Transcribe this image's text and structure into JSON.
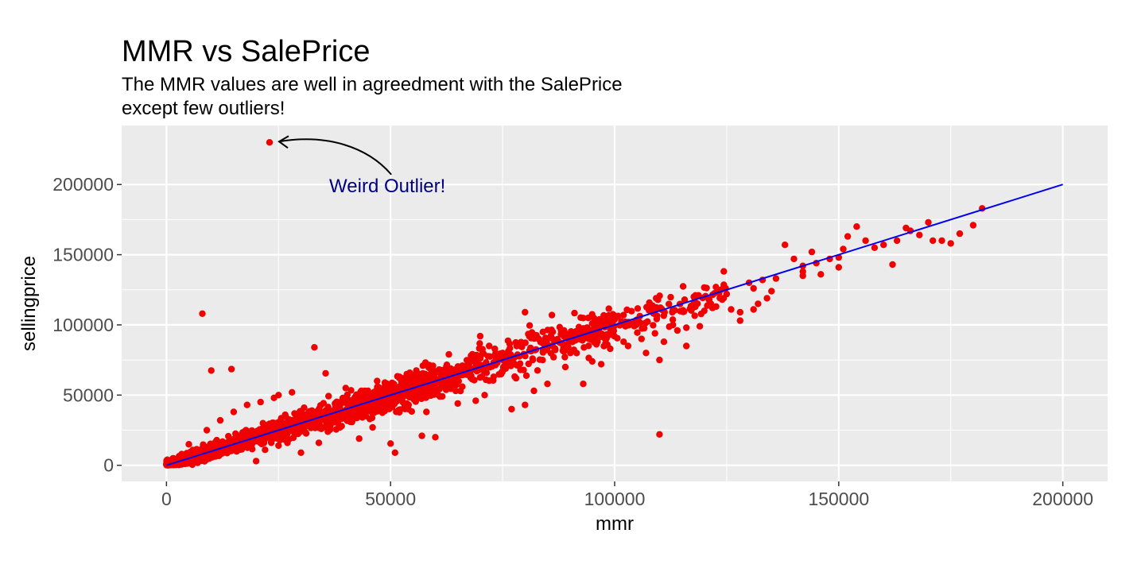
{
  "chart_data": {
    "type": "scatter",
    "title": "MMR vs SalePrice",
    "subtitle_lines": [
      "The MMR values are well in agreedment with the SalePrice",
      "except few outliers!"
    ],
    "xlabel": "mmr",
    "ylabel": "sellingprice",
    "xlim": [
      -10000,
      210000
    ],
    "ylim": [
      -11500,
      242000
    ],
    "x_ticks": [
      0,
      50000,
      100000,
      150000,
      200000
    ],
    "x_tick_labels": [
      "0",
      "50000",
      "100000",
      "150000",
      "200000"
    ],
    "y_ticks": [
      0,
      50000,
      100000,
      150000,
      200000
    ],
    "y_tick_labels": [
      "0",
      "50000",
      "100000",
      "150000",
      "200000"
    ],
    "grid": true,
    "point_color": "#f00000",
    "panel_color": "#ebebeb",
    "grid_color": "#ffffff",
    "reference_line": {
      "color": "#0000ee",
      "x": [
        0,
        200000
      ],
      "y": [
        0,
        200000
      ]
    },
    "annotation": {
      "text": "Weird Outlier!",
      "color": "#000080",
      "point": [
        23000,
        230000
      ],
      "text_position": [
        50000,
        198000
      ]
    },
    "points": [
      [
        23000,
        230000
      ],
      [
        8000,
        108000
      ],
      [
        110000,
        22000
      ],
      [
        10000,
        67500
      ],
      [
        14500,
        68500
      ],
      [
        33000,
        84000
      ],
      [
        35500,
        65500
      ],
      [
        77000,
        40000
      ],
      [
        23000,
        29500
      ],
      [
        24000,
        48000
      ],
      [
        26500,
        36000
      ],
      [
        30000,
        38500
      ],
      [
        57000,
        21000
      ],
      [
        51000,
        9000
      ],
      [
        50000,
        15500
      ],
      [
        58000,
        38000
      ],
      [
        60000,
        20000
      ],
      [
        65000,
        44000
      ],
      [
        69000,
        46000
      ],
      [
        71000,
        50000
      ],
      [
        78000,
        62000
      ],
      [
        80000,
        43000
      ],
      [
        82000,
        53000
      ],
      [
        85000,
        58000
      ],
      [
        89000,
        70000
      ],
      [
        93000,
        58000
      ],
      [
        95000,
        74000
      ],
      [
        97000,
        72000
      ],
      [
        99000,
        83000
      ],
      [
        103000,
        85000
      ],
      [
        106000,
        90000
      ],
      [
        109000,
        94000
      ],
      [
        111000,
        88000
      ],
      [
        113000,
        100000
      ],
      [
        116000,
        98000
      ],
      [
        116000,
        85000
      ],
      [
        118000,
        113000
      ],
      [
        120000,
        110000
      ],
      [
        121000,
        118000
      ],
      [
        123000,
        125000
      ],
      [
        125000,
        122000
      ],
      [
        126000,
        111000
      ],
      [
        128000,
        109000
      ],
      [
        128000,
        103000
      ],
      [
        130000,
        130000
      ],
      [
        131000,
        126000
      ],
      [
        133000,
        132000
      ],
      [
        134000,
        119000
      ],
      [
        135000,
        124000
      ],
      [
        136000,
        133000
      ],
      [
        132000,
        115000
      ],
      [
        131000,
        111000
      ],
      [
        138000,
        157000
      ],
      [
        140000,
        147000
      ],
      [
        142000,
        142000
      ],
      [
        142000,
        138000
      ],
      [
        142000,
        135000
      ],
      [
        144000,
        152000
      ],
      [
        145000,
        144000
      ],
      [
        146000,
        136000
      ],
      [
        148000,
        147000
      ],
      [
        150000,
        148000
      ],
      [
        150000,
        141000
      ],
      [
        151000,
        154000
      ],
      [
        152000,
        163000
      ],
      [
        154000,
        170000
      ],
      [
        156000,
        160000
      ],
      [
        158000,
        155000
      ],
      [
        160000,
        157000
      ],
      [
        162000,
        143000
      ],
      [
        163000,
        160000
      ],
      [
        165000,
        169000
      ],
      [
        166000,
        167000
      ],
      [
        168000,
        164000
      ],
      [
        170000,
        173000
      ],
      [
        171000,
        160000
      ],
      [
        173000,
        160000
      ],
      [
        175000,
        158000
      ],
      [
        177000,
        165000
      ],
      [
        180000,
        171000
      ],
      [
        182000,
        183000
      ],
      [
        95000,
        101000
      ],
      [
        92000,
        96000
      ],
      [
        88000,
        87000
      ],
      [
        84000,
        95000
      ],
      [
        75000,
        80000
      ],
      [
        72000,
        85000
      ],
      [
        68000,
        75000
      ],
      [
        64000,
        67000
      ],
      [
        60000,
        62000
      ],
      [
        55000,
        58000
      ],
      [
        52000,
        56000
      ],
      [
        47000,
        48000
      ],
      [
        44000,
        45000
      ],
      [
        40000,
        38000
      ],
      [
        38000,
        42000
      ],
      [
        36000,
        33000
      ],
      [
        32000,
        30000
      ],
      [
        30000,
        34000
      ],
      [
        28000,
        25000
      ],
      [
        26000,
        27000
      ],
      [
        24000,
        20000
      ],
      [
        22000,
        22000
      ],
      [
        20000,
        19000
      ],
      [
        18000,
        18000
      ],
      [
        16000,
        17000
      ],
      [
        14000,
        13000
      ],
      [
        12000,
        13000
      ],
      [
        10000,
        10000
      ],
      [
        8000,
        8000
      ],
      [
        6000,
        5000
      ],
      [
        4000,
        5000
      ],
      [
        2000,
        2000
      ],
      [
        20000,
        3000
      ],
      [
        30000,
        9000
      ],
      [
        34000,
        16000
      ],
      [
        43000,
        19000
      ],
      [
        46000,
        27000
      ],
      [
        40000,
        55000
      ],
      [
        47000,
        60000
      ],
      [
        52000,
        63000
      ],
      [
        58000,
        72000
      ],
      [
        63000,
        79000
      ],
      [
        70000,
        92000
      ],
      [
        80000,
        109000
      ],
      [
        86000,
        107000
      ],
      [
        5000,
        15000
      ],
      [
        9000,
        25000
      ],
      [
        12000,
        32000
      ],
      [
        15000,
        38000
      ],
      [
        18000,
        43000
      ],
      [
        21000,
        45000
      ],
      [
        25000,
        50000
      ],
      [
        28000,
        52000
      ],
      [
        102000,
        88000
      ],
      [
        107000,
        80000
      ],
      [
        110000,
        75000
      ],
      [
        114000,
        96000
      ],
      [
        119000,
        99000
      ],
      [
        124000,
        118000
      ],
      [
        22000,
        11000
      ],
      [
        25000,
        14000
      ],
      [
        27000,
        16000
      ],
      [
        36000,
        24000
      ],
      [
        41000,
        31000
      ],
      [
        54000,
        40000
      ],
      [
        61000,
        49000
      ],
      [
        66000,
        56000
      ],
      [
        73000,
        63000
      ],
      [
        79000,
        68000
      ]
    ]
  }
}
